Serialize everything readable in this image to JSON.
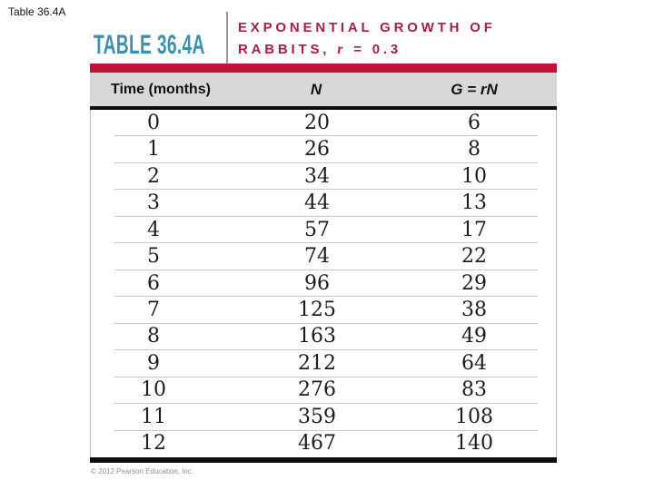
{
  "slide_label": "Table 36.4A",
  "header": {
    "table_label": "TABLE 36.4A",
    "title_line1": "EXPONENTIAL GROWTH OF",
    "title_line2_prefix": "RABBITS, ",
    "title_var": "r",
    "title_line2_suffix": " = 0.3"
  },
  "colors": {
    "teal_label": "#3E91AE",
    "crimson_title": "#A62040",
    "red_bar": "#C01334",
    "header_row_bg": "#D8D8D8",
    "rule_black": "#0f0f0f",
    "row_separator": "#c9c9c9"
  },
  "chart_data": {
    "type": "table",
    "title": "EXPONENTIAL GROWTH OF RABBITS, r = 0.3",
    "columns": [
      "Time (months)",
      "N",
      "G = rN"
    ],
    "rows": [
      [
        0,
        20,
        6
      ],
      [
        1,
        26,
        8
      ],
      [
        2,
        34,
        10
      ],
      [
        3,
        44,
        13
      ],
      [
        4,
        57,
        17
      ],
      [
        5,
        74,
        22
      ],
      [
        6,
        96,
        29
      ],
      [
        7,
        125,
        38
      ],
      [
        8,
        163,
        49
      ],
      [
        9,
        212,
        64
      ],
      [
        10,
        276,
        83
      ],
      [
        11,
        359,
        108
      ],
      [
        12,
        467,
        140
      ]
    ]
  },
  "footer": {
    "copyright": "© 2012 Pearson Education, Inc."
  }
}
